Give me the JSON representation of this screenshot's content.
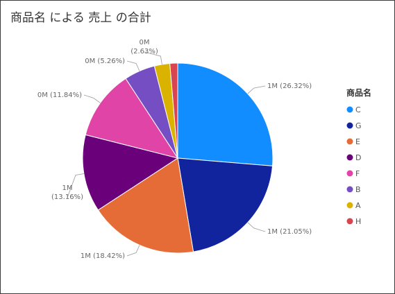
{
  "chart_data": {
    "type": "pie",
    "title": "商品名 による 売上 の合計",
    "legend_title": "商品名",
    "legend_position": "right",
    "slices": [
      {
        "name": "C",
        "percent": 26.32,
        "value_label": "1M",
        "pct_label": "(26.32%)",
        "color": "#118DFF"
      },
      {
        "name": "G",
        "percent": 21.05,
        "value_label": "1M",
        "pct_label": "(21.05%)",
        "color": "#12239E"
      },
      {
        "name": "E",
        "percent": 18.42,
        "value_label": "1M",
        "pct_label": "(18.42%)",
        "color": "#E66C37"
      },
      {
        "name": "D",
        "percent": 13.16,
        "value_label": "1M",
        "pct_label": "(13.16%)",
        "color": "#6B007B"
      },
      {
        "name": "F",
        "percent": 11.84,
        "value_label": "0M",
        "pct_label": "(11.84%)",
        "color": "#E044A7"
      },
      {
        "name": "B",
        "percent": 5.26,
        "value_label": "0M",
        "pct_label": "(5.26%)",
        "color": "#744EC2"
      },
      {
        "name": "A",
        "percent": 2.63,
        "value_label": "0M",
        "pct_label": "(2.63%)",
        "color": "#D9B300"
      },
      {
        "name": "H",
        "percent": 1.32,
        "value_label": "",
        "pct_label": "",
        "color": "#D64550"
      }
    ]
  }
}
